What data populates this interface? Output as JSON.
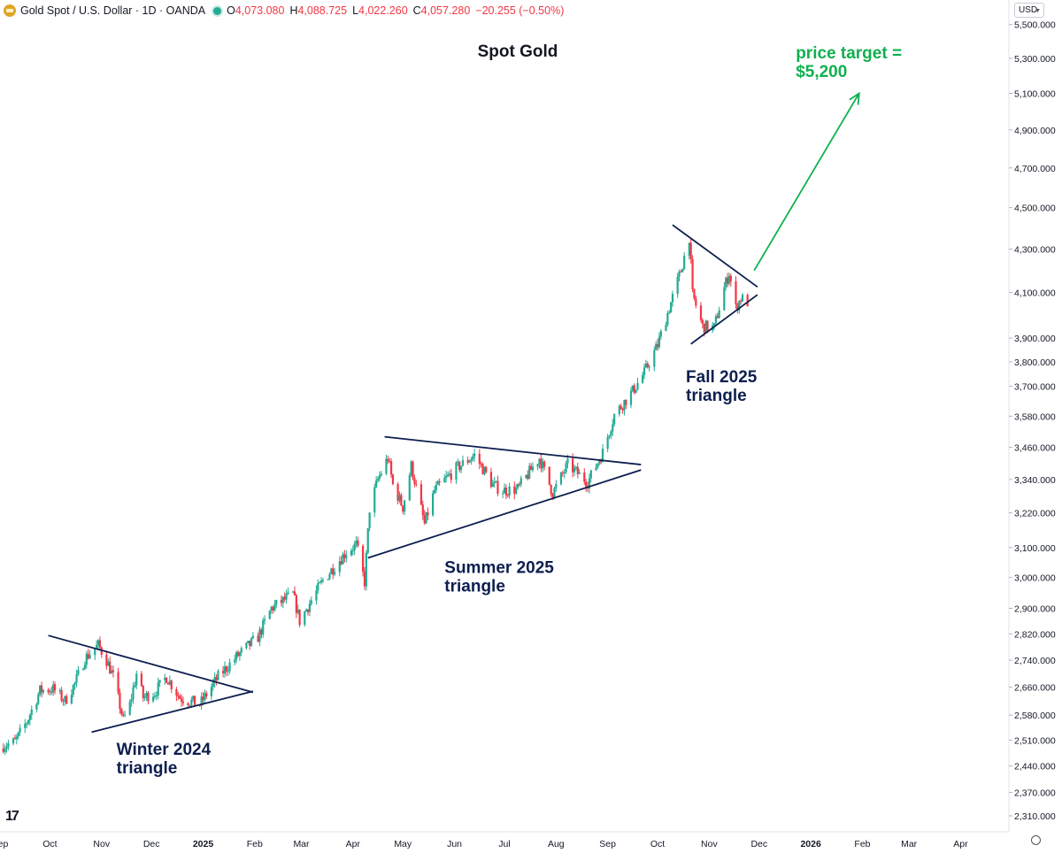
{
  "header": {
    "symbol": "Gold Spot / U.S. Dollar · 1D · OANDA",
    "open_label": "O",
    "open": "4,073.080",
    "high_label": "H",
    "high": "4,088.725",
    "low_label": "L",
    "low": "4,022.260",
    "close_label": "C",
    "close": "4,057.280",
    "change": "−20.255 (−0.50%)",
    "currency": "USD"
  },
  "chart_data": {
    "type": "candlestick",
    "title": "Spot Gold",
    "y_axis": {
      "scale": "log",
      "range": [
        2270,
        5650
      ],
      "ticks": [
        {
          "v": 5500,
          "label": "5,500.000"
        },
        {
          "v": 5300,
          "label": "5,300.000"
        },
        {
          "v": 5100,
          "label": "5,100.000"
        },
        {
          "v": 4900,
          "label": "4,900.000"
        },
        {
          "v": 4700,
          "label": "4,700.000"
        },
        {
          "v": 4500,
          "label": "4,500.000"
        },
        {
          "v": 4300,
          "label": "4,300.000"
        },
        {
          "v": 4100,
          "label": "4,100.000"
        },
        {
          "v": 3900,
          "label": "3,900.000"
        },
        {
          "v": 3800,
          "label": "3,800.000"
        },
        {
          "v": 3700,
          "label": "3,700.000"
        },
        {
          "v": 3580,
          "label": "3,580.000"
        },
        {
          "v": 3460,
          "label": "3,460.000"
        },
        {
          "v": 3340,
          "label": "3,340.000"
        },
        {
          "v": 3220,
          "label": "3,220.000"
        },
        {
          "v": 3100,
          "label": "3,100.000"
        },
        {
          "v": 3000,
          "label": "3,000.000"
        },
        {
          "v": 2900,
          "label": "2,900.000"
        },
        {
          "v": 2820,
          "label": "2,820.000"
        },
        {
          "v": 2740,
          "label": "2,740.000"
        },
        {
          "v": 2660,
          "label": "2,660.000"
        },
        {
          "v": 2580,
          "label": "2,580.000"
        },
        {
          "v": 2510,
          "label": "2,510.000"
        },
        {
          "v": 2440,
          "label": "2,440.000"
        },
        {
          "v": 2370,
          "label": "2,370.000"
        },
        {
          "v": 2310,
          "label": "2,310.000"
        }
      ]
    },
    "x_axis": {
      "range": [
        "2024-09-01",
        "2026-04-30"
      ],
      "ticks": [
        {
          "date": "2024-09-01",
          "label": "Sep"
        },
        {
          "date": "2024-10-01",
          "label": "Oct"
        },
        {
          "date": "2024-11-01",
          "label": "Nov"
        },
        {
          "date": "2024-12-01",
          "label": "Dec"
        },
        {
          "date": "2025-01-01",
          "label": "2025"
        },
        {
          "date": "2025-02-01",
          "label": "Feb"
        },
        {
          "date": "2025-03-01",
          "label": "Mar"
        },
        {
          "date": "2025-04-01",
          "label": "Apr"
        },
        {
          "date": "2025-05-01",
          "label": "May"
        },
        {
          "date": "2025-06-01",
          "label": "Jun"
        },
        {
          "date": "2025-07-01",
          "label": "Jul"
        },
        {
          "date": "2025-08-01",
          "label": "Aug"
        },
        {
          "date": "2025-09-01",
          "label": "Sep"
        },
        {
          "date": "2025-10-01",
          "label": "Oct"
        },
        {
          "date": "2025-11-01",
          "label": "Nov"
        },
        {
          "date": "2025-12-01",
          "label": "Dec"
        },
        {
          "date": "2026-01-01",
          "label": "2026"
        },
        {
          "date": "2026-02-01",
          "label": "Feb"
        },
        {
          "date": "2026-03-01",
          "label": "Mar"
        },
        {
          "date": "2026-04-01",
          "label": "Apr"
        }
      ]
    },
    "close_path": [
      [
        "2024-09-03",
        2495
      ],
      [
        "2024-09-10",
        2505
      ],
      [
        "2024-09-17",
        2560
      ],
      [
        "2024-09-25",
        2650
      ],
      [
        "2024-10-03",
        2655
      ],
      [
        "2024-10-10",
        2620
      ],
      [
        "2024-10-16",
        2670
      ],
      [
        "2024-10-22",
        2745
      ],
      [
        "2024-10-30",
        2785
      ],
      [
        "2024-11-04",
        2740
      ],
      [
        "2024-11-08",
        2690
      ],
      [
        "2024-11-14",
        2565
      ],
      [
        "2024-11-18",
        2610
      ],
      [
        "2024-11-22",
        2700
      ],
      [
        "2024-11-26",
        2630
      ],
      [
        "2024-12-03",
        2645
      ],
      [
        "2024-12-10",
        2690
      ],
      [
        "2024-12-18",
        2630
      ],
      [
        "2024-12-30",
        2610
      ],
      [
        "2025-01-10",
        2690
      ],
      [
        "2025-01-22",
        2755
      ],
      [
        "2025-02-03",
        2810
      ],
      [
        "2025-02-11",
        2900
      ],
      [
        "2025-02-24",
        2945
      ],
      [
        "2025-02-28",
        2860
      ],
      [
        "2025-03-14",
        2990
      ],
      [
        "2025-03-28",
        3085
      ],
      [
        "2025-04-03",
        3110
      ],
      [
        "2025-04-08",
        2985
      ],
      [
        "2025-04-11",
        3235
      ],
      [
        "2025-04-16",
        3340
      ],
      [
        "2025-04-22",
        3420
      ],
      [
        "2025-04-25",
        3320
      ],
      [
        "2025-05-01",
        3240
      ],
      [
        "2025-05-06",
        3390
      ],
      [
        "2025-05-14",
        3180
      ],
      [
        "2025-05-20",
        3300
      ],
      [
        "2025-06-02",
        3380
      ],
      [
        "2025-06-13",
        3430
      ],
      [
        "2025-06-24",
        3320
      ],
      [
        "2025-06-30",
        3300
      ],
      [
        "2025-07-09",
        3305
      ],
      [
        "2025-07-22",
        3420
      ],
      [
        "2025-07-30",
        3290
      ],
      [
        "2025-08-08",
        3395
      ],
      [
        "2025-08-20",
        3330
      ],
      [
        "2025-08-29",
        3440
      ],
      [
        "2025-09-05",
        3585
      ],
      [
        "2025-09-16",
        3680
      ],
      [
        "2025-09-23",
        3755
      ],
      [
        "2025-10-01",
        3870
      ],
      [
        "2025-10-08",
        4030
      ],
      [
        "2025-10-15",
        4200
      ],
      [
        "2025-10-20",
        4360
      ],
      [
        "2025-10-22",
        4090
      ],
      [
        "2025-10-28",
        3950
      ],
      [
        "2025-11-04",
        3945
      ],
      [
        "2025-11-10",
        4120
      ],
      [
        "2025-11-13",
        4190
      ],
      [
        "2025-11-17",
        4030
      ],
      [
        "2025-11-20",
        4075
      ],
      [
        "2025-11-24",
        4057
      ]
    ],
    "trendlines": [
      {
        "from": [
          "2024-09-30",
          2815
        ],
        "to": [
          "2025-01-31",
          2645
        ]
      },
      {
        "from": [
          "2024-10-26",
          2532
        ],
        "to": [
          "2025-01-31",
          2648
        ]
      },
      {
        "from": [
          "2025-04-20",
          3500
        ],
        "to": [
          "2025-09-21",
          3395
        ]
      },
      {
        "from": [
          "2025-04-10",
          3065
        ],
        "to": [
          "2025-09-21",
          3375
        ]
      },
      {
        "from": [
          "2025-10-10",
          4415
        ],
        "to": [
          "2025-11-30",
          4125
        ]
      },
      {
        "from": [
          "2025-10-21",
          3875
        ],
        "to": [
          "2025-11-30",
          4090
        ]
      }
    ],
    "target_arrow": {
      "from": [
        "2025-11-28",
        4200
      ],
      "to": [
        "2026-01-30",
        5100
      ],
      "color": "#10b050"
    },
    "annotations": [
      {
        "line1": "Winter 2024",
        "line2": "triangle",
        "date": "2024-11-10",
        "value": 2470,
        "color": "#0d1f4f"
      },
      {
        "line1": "Summer 2025",
        "line2": "triangle",
        "date": "2025-05-26",
        "value": 3015,
        "color": "#0d1f4f"
      },
      {
        "line1": "Fall 2025",
        "line2": "triangle",
        "date": "2025-10-18",
        "value": 3715,
        "color": "#0d1f4f"
      },
      {
        "line1": "price target =",
        "line2": "$5,200",
        "date": "2025-12-23",
        "value": 5300,
        "color": "#10b050"
      }
    ],
    "colors": {
      "up": "#22ab94",
      "down": "#f23645",
      "trendline": "#0d1f4f",
      "target": "#10b050"
    }
  }
}
